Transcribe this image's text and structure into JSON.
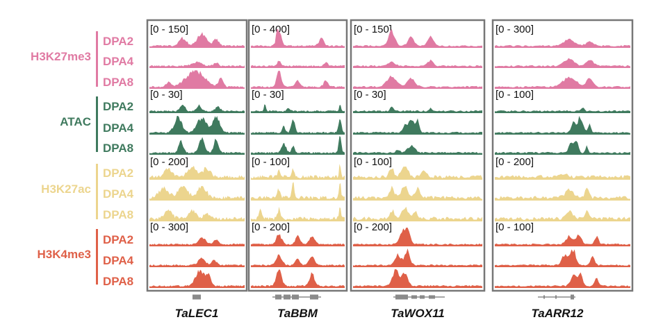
{
  "colors": {
    "H3K27me3": "#e07aa3",
    "ATAC": "#3f7a5e",
    "H3K27ac": "#ecd58e",
    "H3K4me3": "#df6048",
    "frame": "#777777",
    "gene_model": "#8a8a8a"
  },
  "stages": [
    "DPA2",
    "DPA4",
    "DPA8"
  ],
  "marks": [
    {
      "key": "H3K27me3",
      "label": "H3K27me3"
    },
    {
      "key": "ATAC",
      "label": "ATAC"
    },
    {
      "key": "H3K27ac",
      "label": "H3K27ac"
    },
    {
      "key": "H3K4me3",
      "label": "H3K4me3"
    }
  ],
  "genes": [
    {
      "name": "TaLEC1",
      "ranges": [
        "[0 - 150]",
        "[0 - 30]",
        "[0 - 200]",
        "[0 - 300]"
      ]
    },
    {
      "name": "TaBBM",
      "ranges": [
        "[0 - 400]",
        "[0 - 30]",
        "[0 - 100]",
        "[0 - 200]"
      ]
    },
    {
      "name": "TaWOX11",
      "ranges": [
        "[0 - 150]",
        "[0 - 30]",
        "[0 - 100]",
        "[0 - 200]"
      ]
    },
    {
      "name": "TaARR12",
      "ranges": [
        "[0 - 300]",
        "[0 - 100]",
        "[0 - 200]",
        "[0 - 100]"
      ]
    }
  ]
}
